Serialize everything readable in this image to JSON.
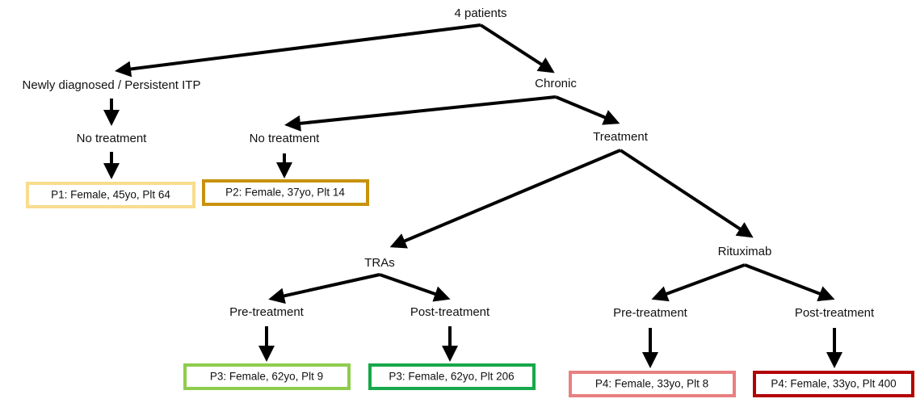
{
  "nodes": [
    {
      "label": "4 patients"
    },
    {
      "label": "Newly diagnosed / Persistent ITP"
    },
    {
      "label": "Chronic"
    },
    {
      "label": "No treatment"
    },
    {
      "label": "No treatment"
    },
    {
      "label": "Treatment"
    },
    {
      "label": "TRAs"
    },
    {
      "label": "Rituximab"
    },
    {
      "label": "Pre-treatment"
    },
    {
      "label": "Post-treatment"
    },
    {
      "label": "Pre-treatment"
    },
    {
      "label": "Post-treatment"
    }
  ],
  "patients": [
    {
      "label": "P1: Female, 45yo, Plt 64"
    },
    {
      "label": "P2: Female, 37yo, Plt 14"
    },
    {
      "label": "P3: Female, 62yo, Plt 9"
    },
    {
      "label": "P3: Female, 62yo, Plt 206"
    },
    {
      "label": "P4: Female, 33yo, Plt 8"
    },
    {
      "label": "P4: Female, 33yo, Plt 400"
    }
  ]
}
